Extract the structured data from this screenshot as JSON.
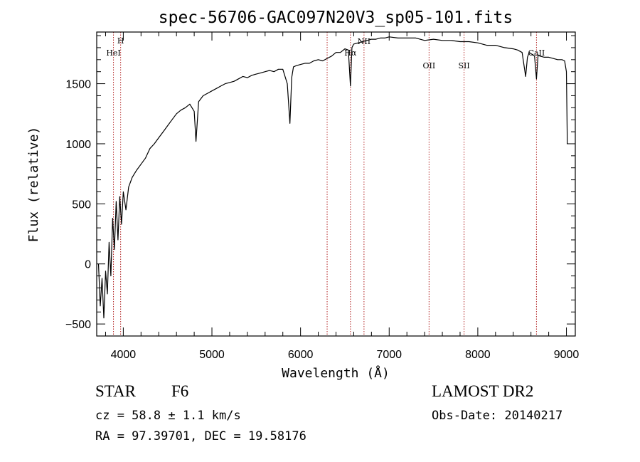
{
  "chart_data": {
    "type": "line",
    "title": "spec-56706-GAC097N20V3_sp05-101.fits",
    "xlabel": "Wavelength (Å)",
    "ylabel": "Flux (relative)",
    "xlim": [
      3700,
      9100
    ],
    "ylim": [
      -600,
      1930
    ],
    "xticks": [
      4000,
      5000,
      6000,
      7000,
      8000,
      9000
    ],
    "yticks": [
      -500,
      0,
      500,
      1000,
      1500
    ],
    "grid": false,
    "series": [
      {
        "x": [
          3720,
          3740,
          3760,
          3780,
          3800,
          3820,
          3840,
          3860,
          3880,
          3900,
          3920,
          3940,
          3960,
          3980,
          4000,
          4030,
          4060,
          4100,
          4150,
          4200,
          4250,
          4300,
          4350,
          4400,
          4450,
          4500,
          4550,
          4600,
          4650,
          4700,
          4750,
          4800,
          4820,
          4850,
          4900,
          4950,
          5000,
          5050,
          5100,
          5150,
          5200,
          5250,
          5300,
          5350,
          5400,
          5450,
          5500,
          5550,
          5600,
          5650,
          5700,
          5750,
          5800,
          5850,
          5880,
          5900,
          5920,
          5950,
          6000,
          6050,
          6100,
          6150,
          6200,
          6250,
          6300,
          6350,
          6400,
          6450,
          6500,
          6540,
          6563,
          6580,
          6600,
          6650,
          6700,
          6750,
          6800,
          6850,
          6900,
          6950,
          7000,
          7100,
          7200,
          7300,
          7400,
          7500,
          7600,
          7700,
          7800,
          7900,
          8000,
          8100,
          8200,
          8300,
          8400,
          8450,
          8500,
          8540,
          8560,
          8580,
          8600,
          8640,
          8662,
          8680,
          8700,
          8750,
          8800,
          8850,
          8900,
          8950,
          8980,
          9000,
          9010
        ],
        "y": [
          0,
          -350,
          -120,
          -450,
          -60,
          -250,
          180,
          -100,
          380,
          120,
          520,
          200,
          560,
          330,
          600,
          450,
          640,
          720,
          780,
          830,
          880,
          960,
          1000,
          1050,
          1100,
          1150,
          1200,
          1250,
          1280,
          1300,
          1330,
          1270,
          1020,
          1350,
          1400,
          1420,
          1440,
          1460,
          1480,
          1500,
          1510,
          1520,
          1540,
          1560,
          1550,
          1570,
          1580,
          1590,
          1600,
          1610,
          1600,
          1620,
          1620,
          1500,
          1170,
          1550,
          1640,
          1650,
          1660,
          1670,
          1670,
          1690,
          1700,
          1690,
          1710,
          1730,
          1760,
          1760,
          1790,
          1780,
          1480,
          1800,
          1830,
          1840,
          1850,
          1860,
          1870,
          1870,
          1880,
          1880,
          1890,
          1880,
          1880,
          1880,
          1860,
          1870,
          1860,
          1860,
          1850,
          1850,
          1840,
          1820,
          1820,
          1800,
          1790,
          1780,
          1760,
          1560,
          1720,
          1760,
          1750,
          1730,
          1540,
          1740,
          1730,
          1720,
          1720,
          1710,
          1700,
          1700,
          1690,
          1600,
          1000
        ]
      }
    ],
    "lines": [
      {
        "label": "H",
        "x": 3970
      },
      {
        "label": "HeI",
        "x": 3889
      },
      {
        "label": "",
        "x": 6300
      },
      {
        "label": "Hα",
        "x": 6563
      },
      {
        "label": "NII",
        "x": 6716
      },
      {
        "label": "OII",
        "x": 7450
      },
      {
        "label": "SII",
        "x": 7845
      },
      {
        "label": "CaII",
        "x": 8662
      }
    ]
  },
  "info": {
    "class_label": "STAR",
    "subclass": "F6",
    "redshift": "cz = 58.8 ± 1.1 km/s",
    "coords": "RA =  97.39701, DEC =  19.58176",
    "survey": "LAMOST DR2",
    "obs_date": "Obs-Date: 20140217"
  },
  "colors": {
    "spectrum": "#000000",
    "line_marker": "#b22222"
  }
}
